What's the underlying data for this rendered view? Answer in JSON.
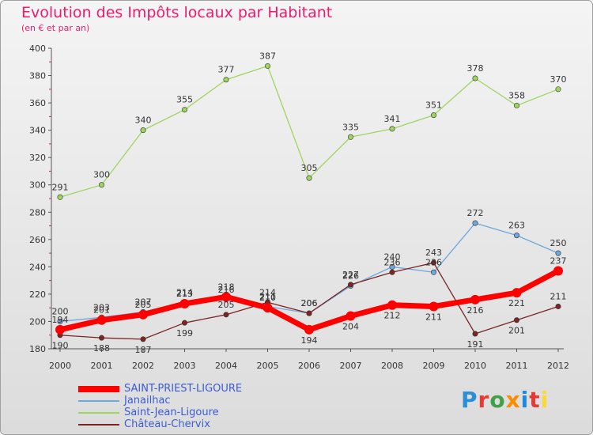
{
  "header": {
    "title": "Evolution des Impôts locaux par Habitant",
    "subtitle": "(en € et par an)"
  },
  "brand": {
    "logo_letters": [
      "P",
      "r",
      "o",
      "x",
      "i",
      "t",
      "i"
    ],
    "logo_colors": [
      "#2a8fd6",
      "#e53935",
      "#43a047",
      "#fb8c00",
      "#1e88e5",
      "#e53935",
      "#fdd835"
    ]
  },
  "chart_data": {
    "type": "line",
    "title": "Evolution des Impôts locaux par Habitant",
    "subtitle": "(en € et par an)",
    "x": [
      "2000",
      "2001",
      "2002",
      "2003",
      "2004",
      "2005",
      "2006",
      "2007",
      "2008",
      "2009",
      "2010",
      "2011",
      "2012"
    ],
    "ylim": [
      180,
      400
    ],
    "yticks": [
      180,
      200,
      220,
      240,
      260,
      280,
      300,
      320,
      340,
      360,
      380,
      400
    ],
    "grid": false,
    "legend_position": "bottom-left",
    "series": [
      {
        "name": "SAINT-PRIEST-LIGOURE",
        "color": "#ff0000",
        "values": [
          194,
          201,
          205,
          213,
          218,
          210,
          194,
          204,
          212,
          211,
          216,
          221,
          237
        ],
        "labels": [
          "194",
          "201",
          "205",
          "213",
          "218",
          "210",
          "194",
          "204",
          "212",
          "211",
          "216",
          "221",
          "237"
        ]
      },
      {
        "name": "Janailhac",
        "color": "#6fa8dc",
        "values": [
          200,
          203,
          207,
          214,
          216,
          211,
          206,
          226,
          240,
          236,
          272,
          263,
          250
        ],
        "labels": [
          "200",
          "203",
          "207",
          "214",
          "216",
          "211",
          "206",
          "226",
          "240",
          "236",
          "272",
          "263",
          "250"
        ]
      },
      {
        "name": "Saint-Jean-Ligoure",
        "color": "#9ed55f",
        "values": [
          291,
          300,
          340,
          355,
          377,
          387,
          305,
          335,
          341,
          351,
          378,
          358,
          370
        ],
        "labels": [
          "291",
          "300",
          "340",
          "355",
          "377",
          "387",
          "305",
          "335",
          "341",
          "351",
          "378",
          "358",
          "370"
        ]
      },
      {
        "name": "Château-Chervix",
        "color": "#7b2525",
        "values": [
          190,
          188,
          187,
          199,
          205,
          214,
          206,
          227,
          236,
          243,
          191,
          201,
          211
        ],
        "labels": [
          "190",
          "188",
          "187",
          "199",
          "205",
          "214",
          "206",
          "227",
          "236",
          "243",
          "191",
          "201",
          "211"
        ]
      }
    ]
  }
}
